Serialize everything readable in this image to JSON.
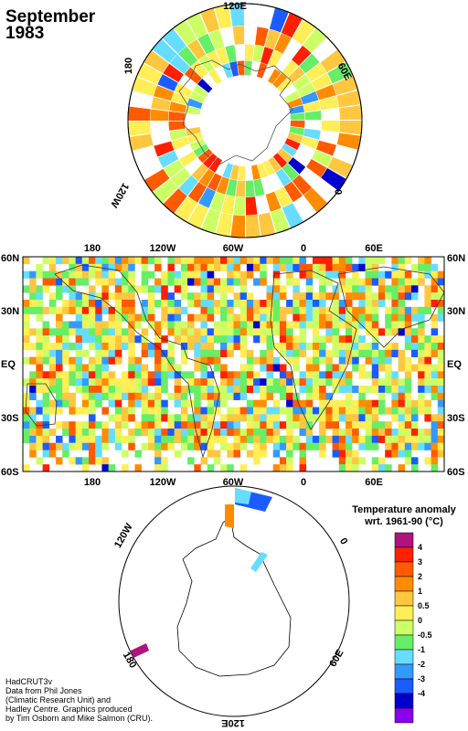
{
  "title": {
    "line1": "September",
    "line2": "1983"
  },
  "credit": [
    "HadCRUT3v",
    "Data from Phil Jones",
    "(Climatic Research Unit) and",
    "Hadley Centre.  Graphics produced",
    "by Tim Osborn and Mike Salmon (CRU)."
  ],
  "north_polar": {
    "labels": [
      "120E",
      "60E",
      "0",
      "120W",
      "180"
    ]
  },
  "map": {
    "top_lon_labels": [
      "180",
      "120W",
      "60W",
      "0",
      "60E"
    ],
    "bottom_lon_labels": [
      "180",
      "120W",
      "60W",
      "0",
      "60E"
    ],
    "lat_labels": [
      "60N",
      "30N",
      "EQ",
      "30S",
      "60S"
    ]
  },
  "south_polar": {
    "labels": [
      "120W",
      "0",
      "180",
      "60E",
      "120E"
    ]
  },
  "legend": {
    "title_line1": "Temperature anomaly",
    "title_line2": "wrt. 1961-90  (°C)",
    "ticks": [
      "4",
      "3",
      "2",
      "1",
      "0.5",
      "0",
      "-0.5",
      "-1",
      "-2",
      "-3",
      "-4"
    ],
    "colors": [
      "#b0127e",
      "#ff2000",
      "#ff5a00",
      "#ff8c00",
      "#ffc640",
      "#ffee55",
      "#ccff66",
      "#66ee66",
      "#66ddff",
      "#3399ff",
      "#1a5cff",
      "#0000cc",
      "#8800ee"
    ]
  }
}
